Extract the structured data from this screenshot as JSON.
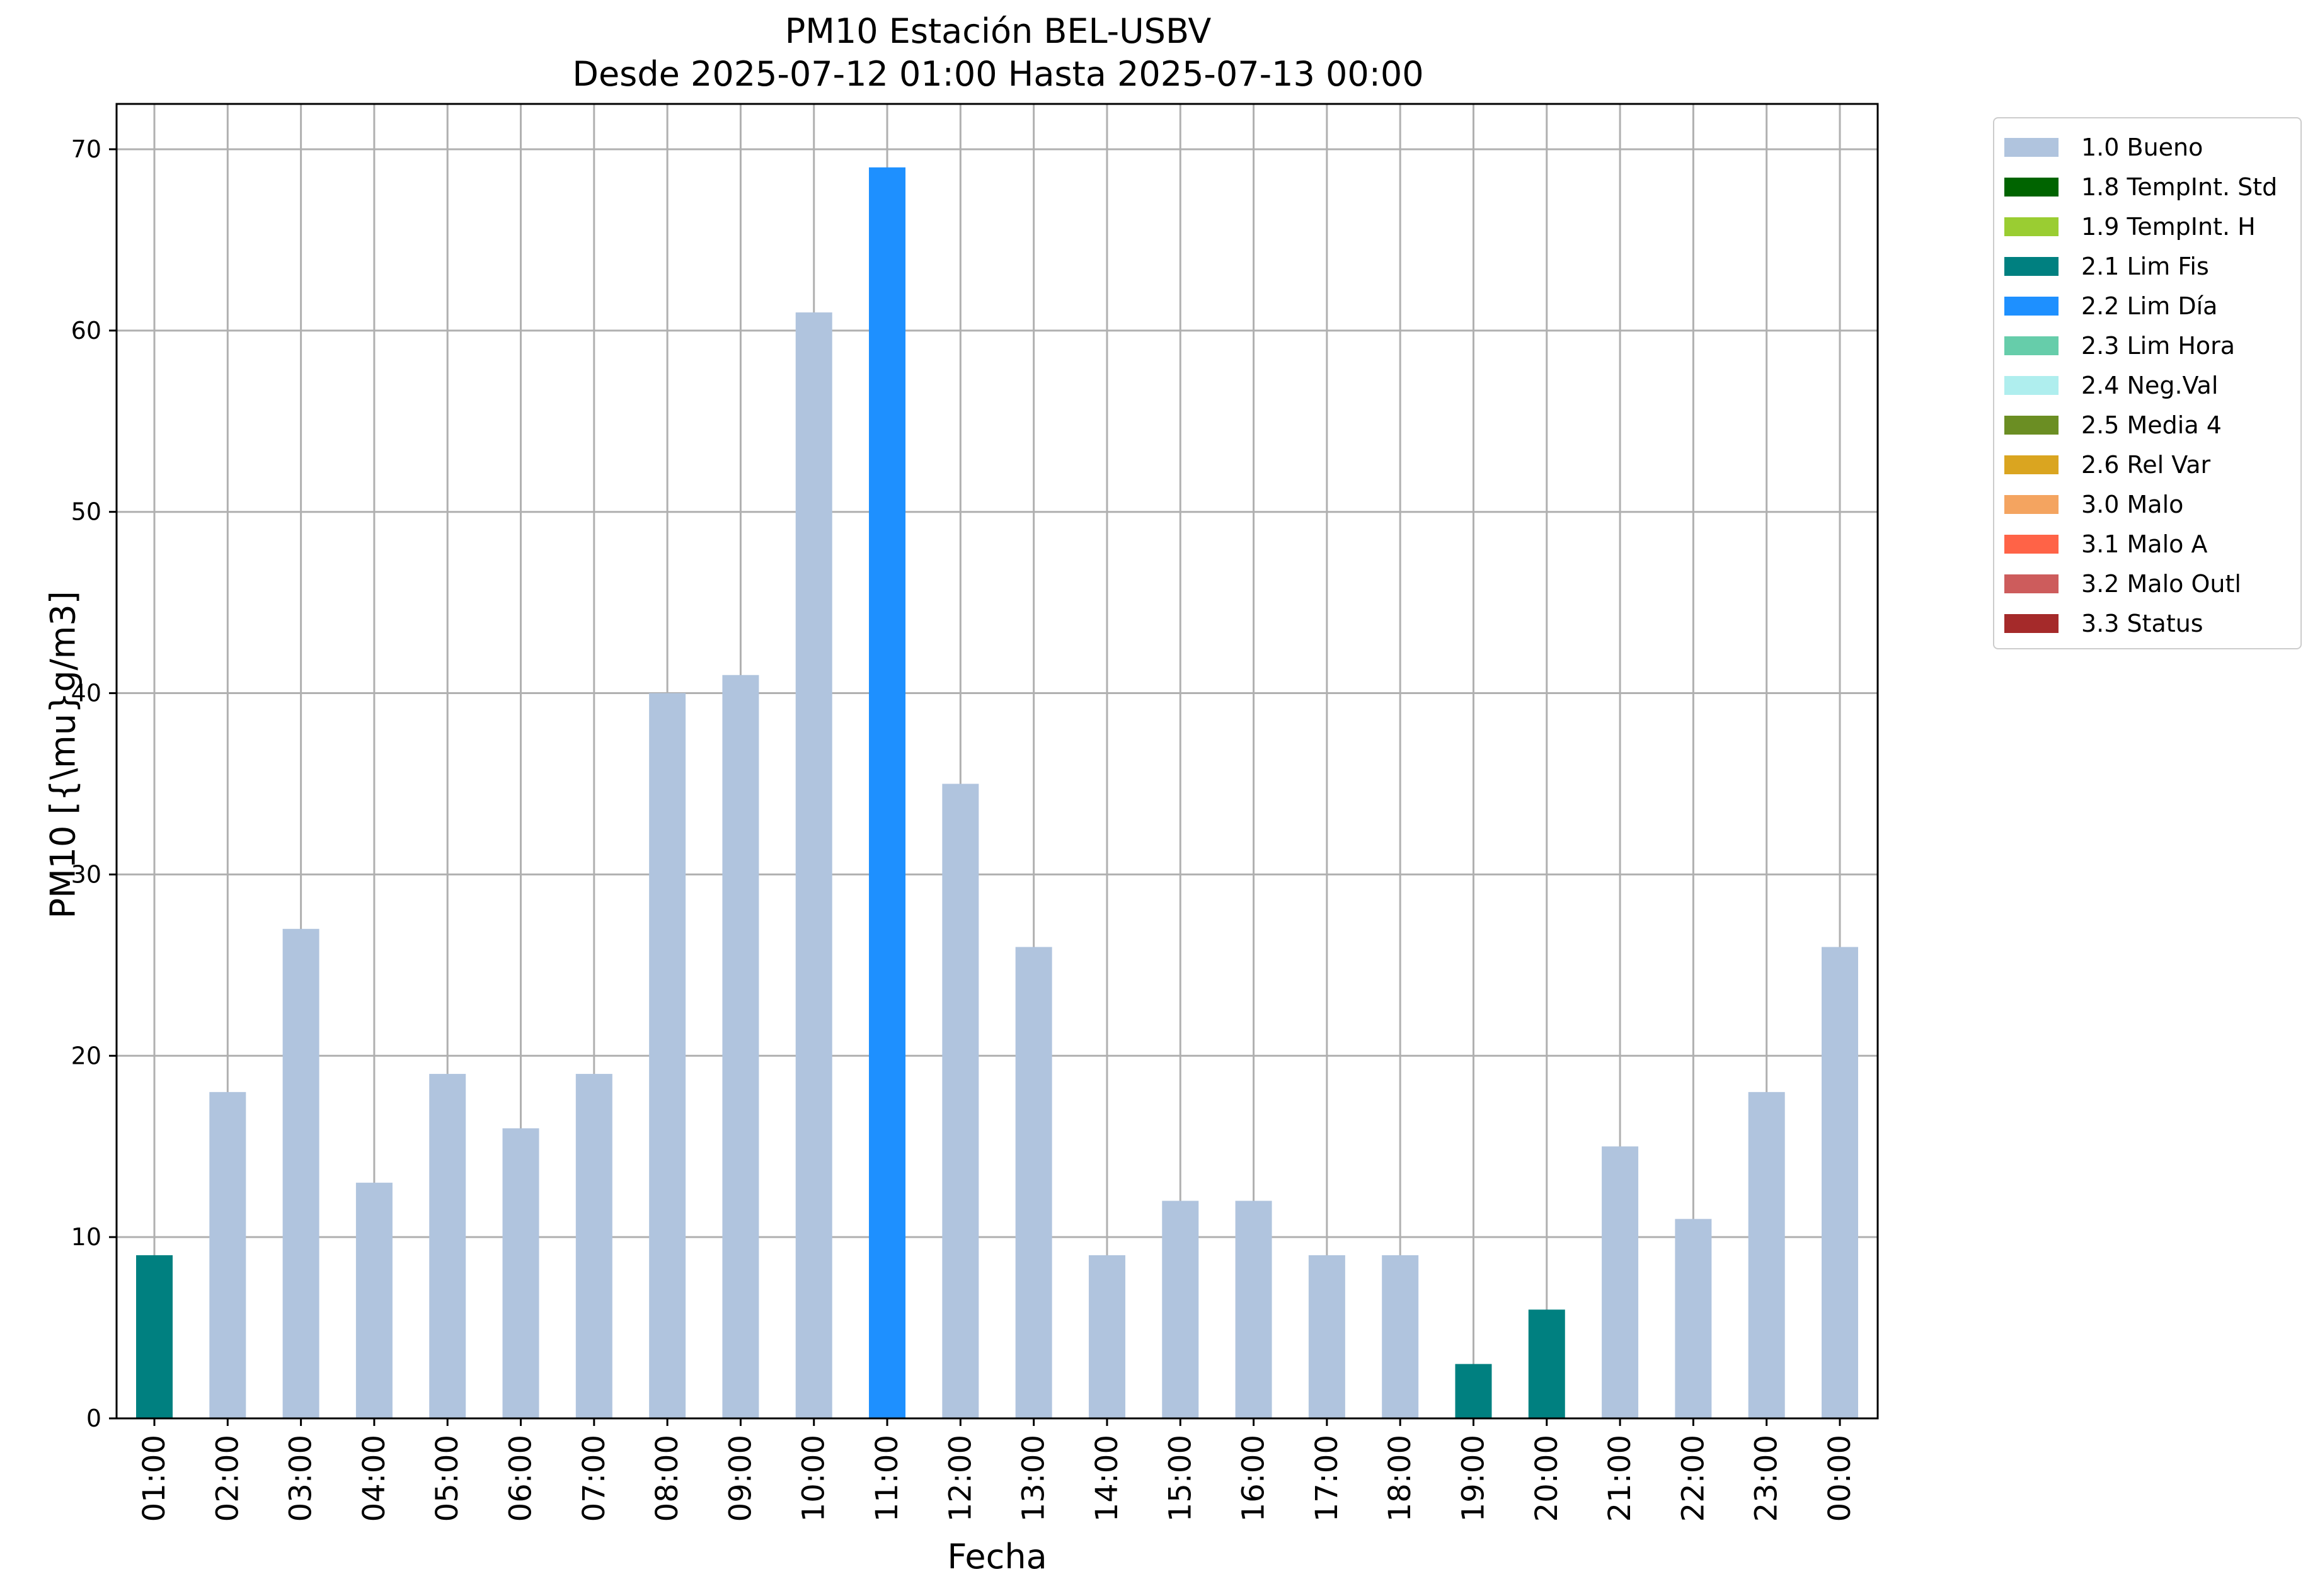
{
  "chart_data": {
    "type": "bar",
    "title": "PM10 Estación BEL-USBV",
    "subtitle": "Desde 2025-07-12 01:00 Hasta 2025-07-13 00:00",
    "xlabel": "Fecha",
    "ylabel": "PM10 [{\\mu}g/m3]",
    "ylim": [
      0,
      72.5
    ],
    "yticks": [
      0,
      10,
      20,
      30,
      40,
      50,
      60,
      70
    ],
    "grid": true,
    "legend_position": "outside-top-right",
    "categories": [
      "01:00",
      "02:00",
      "03:00",
      "04:00",
      "05:00",
      "06:00",
      "07:00",
      "08:00",
      "09:00",
      "10:00",
      "11:00",
      "12:00",
      "13:00",
      "14:00",
      "15:00",
      "16:00",
      "17:00",
      "18:00",
      "19:00",
      "20:00",
      "21:00",
      "22:00",
      "23:00",
      "00:00"
    ],
    "values": [
      9,
      18,
      27,
      13,
      19,
      16,
      19,
      40,
      41,
      61,
      69,
      35,
      26,
      9,
      12,
      12,
      9,
      9,
      3,
      6,
      15,
      11,
      18,
      26
    ],
    "flags": [
      "2.1 Lim Fis",
      "1.0 Bueno",
      "1.0 Bueno",
      "1.0 Bueno",
      "1.0 Bueno",
      "1.0 Bueno",
      "1.0 Bueno",
      "1.0 Bueno",
      "1.0 Bueno",
      "1.0 Bueno",
      "2.2 Lim Día",
      "1.0 Bueno",
      "1.0 Bueno",
      "1.0 Bueno",
      "1.0 Bueno",
      "1.0 Bueno",
      "1.0 Bueno",
      "1.0 Bueno",
      "2.1 Lim Fis",
      "2.1 Lim Fis",
      "1.0 Bueno",
      "1.0 Bueno",
      "1.0 Bueno",
      "1.0 Bueno"
    ],
    "legend": [
      {
        "label": "1.0 Bueno",
        "color": "#b0c4de"
      },
      {
        "label": "1.8 TempInt. Std",
        "color": "#006400"
      },
      {
        "label": "1.9 TempInt. H",
        "color": "#9acd32"
      },
      {
        "label": "2.1 Lim Fis",
        "color": "#008080"
      },
      {
        "label": "2.2 Lim Día",
        "color": "#1e90ff"
      },
      {
        "label": "2.3 Lim Hora",
        "color": "#66cdaa"
      },
      {
        "label": "2.4 Neg.Val",
        "color": "#afeeee"
      },
      {
        "label": "2.5 Media 4",
        "color": "#6b8e23"
      },
      {
        "label": "2.6 Rel Var",
        "color": "#daa520"
      },
      {
        "label": "3.0 Malo",
        "color": "#f4a460"
      },
      {
        "label": "3.1 Malo A",
        "color": "#ff6347"
      },
      {
        "label": "3.2 Malo Outl",
        "color": "#cd5c5c"
      },
      {
        "label": "3.3 Status",
        "color": "#a52a2a"
      }
    ]
  }
}
